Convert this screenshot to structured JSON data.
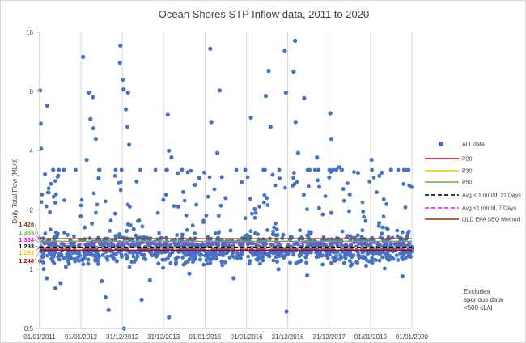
{
  "chart_data": {
    "type": "scatter",
    "title": "Ocean Shores STP Inflow data, 2011 to 2020",
    "xlabel": "",
    "ylabel": "Daily Total Flow (ML/d)",
    "y_scale": "log2",
    "ylim": [
      0.5,
      16
    ],
    "y_ticks": [
      "0.5",
      "1",
      "2",
      "4",
      "8",
      "16"
    ],
    "x_ticks": [
      "01/01/2011",
      "01/01/2012",
      "31/12/2012",
      "31/12/2013",
      "01/01/2015",
      "01/01/2016",
      "31/12/2016",
      "31/12/2017",
      "01/01/2019",
      "01/01/2020"
    ],
    "xlim": [
      "01/01/2011",
      "01/01/2020"
    ],
    "grid": "vertical",
    "legend_position": "right",
    "series": [
      {
        "name": "ALL data",
        "kind": "scatter",
        "color": "#4472c4",
        "note": "approximately 3300 daily points, 01/01/2011 to 01/01/2020, mostly between 1 and 2 ML/d",
        "sample_points": [
          [
            "05/01/2011",
            8.1
          ],
          [
            "10/01/2011",
            5.5
          ],
          [
            "14/01/2011",
            4.1
          ],
          [
            "20/01/2011",
            2.4
          ],
          [
            "10/03/2011",
            6.8
          ],
          [
            "30/04/2011",
            3.2
          ],
          [
            "05/03/2011",
            0.9
          ],
          [
            "20/05/2011",
            0.8
          ],
          [
            "05/07/2011",
            0.85
          ],
          [
            "10/09/2011",
            1.1
          ],
          [
            "20/01/2012",
            12.0
          ],
          [
            "10/03/2012",
            7.9
          ],
          [
            "15/04/2012",
            7.5
          ],
          [
            "25/03/2012",
            5.8
          ],
          [
            "20/04/2012",
            5.2
          ],
          [
            "10/05/2012",
            4.6
          ],
          [
            "20/02/2012",
            3.6
          ],
          [
            "05/06/2012",
            2.9
          ],
          [
            "01/07/2012",
            0.87
          ],
          [
            "05/08/2012",
            0.72
          ],
          [
            "01/09/2012",
            0.62
          ],
          [
            "15/12/2012",
            13.7
          ],
          [
            "10/12/2012",
            11.2
          ],
          [
            "05/01/2013",
            9.2
          ],
          [
            "10/01/2013",
            8.2
          ],
          [
            "20/02/2013",
            7.9
          ],
          [
            "01/02/2013",
            6.5
          ],
          [
            "15/02/2013",
            5.3
          ],
          [
            "01/03/2013",
            4.3
          ],
          [
            "15/01/2013",
            0.5
          ],
          [
            "10/04/2013",
            1.6
          ],
          [
            "20/06/2013",
            0.7
          ],
          [
            "01/09/2013",
            0.88
          ],
          [
            "05/02/2014",
            6.1
          ],
          [
            "15/02/2014",
            4.0
          ],
          [
            "10/03/2014",
            3.7
          ],
          [
            "15/02/2014",
            0.57
          ],
          [
            "10/06/2014",
            3.2
          ],
          [
            "15/08/2014",
            0.95
          ],
          [
            "10/10/2014",
            1.3
          ],
          [
            "15/02/2015",
            13.2
          ],
          [
            "25/02/2015",
            5.6
          ],
          [
            "10/05/2015",
            8.1
          ],
          [
            "20/04/2015",
            3.9
          ],
          [
            "01/07/2015",
            2.3
          ],
          [
            "10/09/2015",
            0.9
          ],
          [
            "20/12/2015",
            1.4
          ],
          [
            "10/02/2016",
            5.9
          ],
          [
            "20/06/2016",
            7.6
          ],
          [
            "15/07/2016",
            10.2
          ],
          [
            "01/08/2016",
            5.3
          ],
          [
            "10/10/2016",
            1.0
          ],
          [
            "05/12/2016",
            12.9
          ],
          [
            "15/12/2016",
            7.9
          ],
          [
            "20/12/2016",
            0.61
          ],
          [
            "05/03/2017",
            14.5
          ],
          [
            "20/02/2017",
            10.1
          ],
          [
            "10/03/2017",
            5.6
          ],
          [
            "01/04/2017",
            3.9
          ],
          [
            "25/05/2017",
            7.4
          ],
          [
            "20/06/2017",
            0.93
          ],
          [
            "15/09/2017",
            3.7
          ],
          [
            "10/01/2018",
            6.2
          ],
          [
            "20/01/2018",
            4.6
          ],
          [
            "01/04/2018",
            3.3
          ],
          [
            "01/07/2018",
            2.4
          ],
          [
            "10/01/2019",
            3.6
          ],
          [
            "10/04/2019",
            3.1
          ],
          [
            "01/07/2019",
            3.2
          ],
          [
            "10/10/2019",
            0.92
          ],
          [
            "20/12/2019",
            1.3
          ]
        ]
      },
      {
        "name": "P20",
        "kind": "hline",
        "value": 1.248,
        "color": "#c00000",
        "dash": "solid"
      },
      {
        "name": "P30",
        "kind": "hline",
        "value": 1.291,
        "color": "#ffc000",
        "dash": "solid"
      },
      {
        "name": "P50",
        "kind": "hline",
        "value": 1.385,
        "color": "#70ad47",
        "dash": "solid"
      },
      {
        "name": "Avg < 1 mm/d, 21 Days",
        "kind": "hline",
        "value": 1.293,
        "color": "#000000",
        "dash": "dashed"
      },
      {
        "name": "Avg <1 mm/d, 7 Days",
        "kind": "hline",
        "value": 1.354,
        "color": "#ff00ff",
        "dash": "dashed"
      },
      {
        "name": "QLD EPA SEQ Method",
        "kind": "hline",
        "value": 1.428,
        "color": "#843c0c",
        "dash": "solid"
      }
    ],
    "value_labels": [
      {
        "text": "1.428",
        "color": "#843c0c",
        "value": 1.428
      },
      {
        "text": "1.385",
        "color": "#70ad47",
        "value": 1.385
      },
      {
        "text": "1.354",
        "color": "#ff00ff",
        "value": 1.354
      },
      {
        "text": "1.293",
        "color": "#000000",
        "value": 1.293
      },
      {
        "text": "1.291",
        "color": "#ffc000",
        "value": 1.291
      },
      {
        "text": "1.248",
        "color": "#c00000",
        "value": 1.248
      }
    ],
    "annotation": [
      "Excludes",
      "spurious data",
      "<500 kL/d"
    ]
  }
}
